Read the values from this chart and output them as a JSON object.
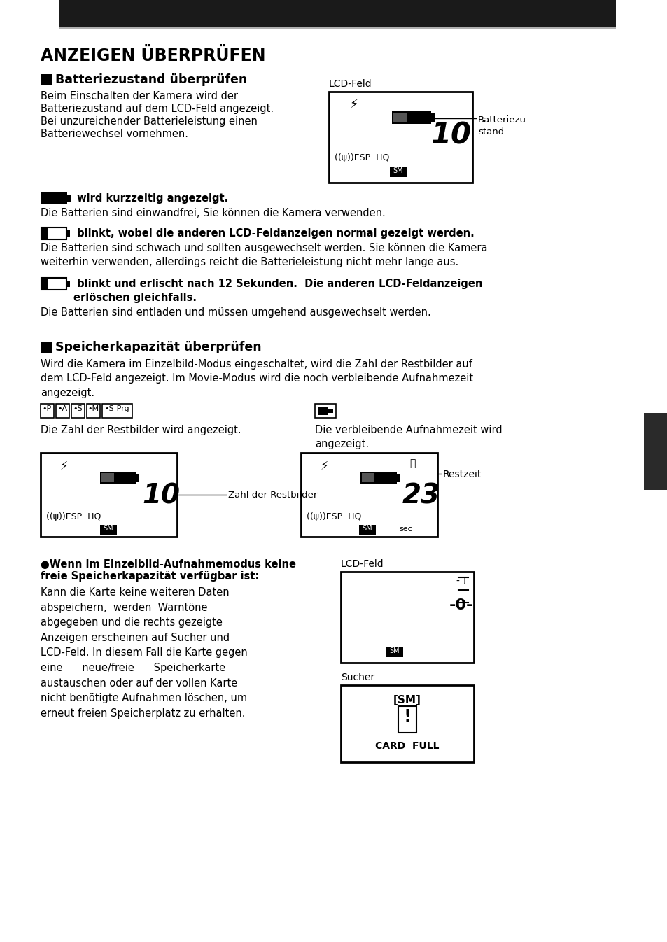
{
  "bg_color": "#ffffff",
  "title": "ANZEIGEN ÜBERPRÜFEN",
  "s1_head": "Batteriezustand überprüfen",
  "s1_para": "Beim Einschalten der Kamera wird der\nBatteriezustand auf dem LCD-Feld angezeigt.\nBei unzureichender Batterieleistung einen\nBatteriewechsel vornehmen.",
  "lcd_label1": "LCD-Feld",
  "batt_label": "Batteriezu-\nstand",
  "b1_bold": " wird kurzzeitig angezeigt.",
  "b1_text": "Die Batterien sind einwandfrei, Sie können die Kamera verwenden.",
  "b2_bold": " blinkt, wobei die anderen LCD-Feldanzeigen normal gezeigt werden.",
  "b2_text": "Die Batterien sind schwach und sollten ausgewechselt werden. Sie können die Kamera\nweiterhin verwenden, allerdings reicht die Batterieleistung nicht mehr lange aus.",
  "b3_bold": " blinkt und erlischt nach 12 Sekunden.  Die anderen LCD-Feldanzeigen\nerlöschen gleichfalls.",
  "b3_text": "Die Batterien sind entladen und müssen umgehend ausgewechselt werden.",
  "s2_head": "Speicherkapazität überprüfen",
  "s2_para": "Wird die Kamera im Einzelbild-Modus eingeschaltet, wird die Zahl der Restbilder auf\ndem LCD-Feld angezeigt. Im Movie-Modus wird die noch verbleibende Aufnahmezeit\nangezeigt.",
  "cap_left": "Die Zahl der Restbilder wird angezeigt.",
  "cap_right": "Die verbleibende Aufnahmezeit wird\nangezeigt.",
  "restzeit": "Restzeit",
  "zahl_rest": "Zahl der Restbilder",
  "s3_bold1": "●Wenn im Einzelbild-Aufnahmemodus keine",
  "s3_bold2": "freie Speicherkapazität verfügbar ist:",
  "s3_para": "Kann die Karte keine weiteren Daten\nabspeichern,  werden  Warntöne\nabgegeben und die rechts gezeigte\nAnzeigen erscheinen auf Sucher und\nLCD-Feld. In diesem Fall die Karte gegen\neine      neue/freie      Speicherkarte\naustauschen oder auf der vollen Karte\nnicht benötigte Aufnahmen löschen, um\nerneut freien Speicherplatz zu erhalten.",
  "lcd_label2": "LCD-Feld",
  "sucher": "Sucher",
  "card_full": "CARD  FULL",
  "sm_bracket": "[SM]"
}
